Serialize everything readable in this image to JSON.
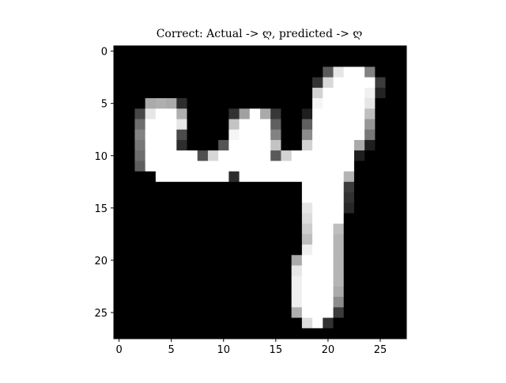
{
  "chart_data": {
    "type": "heatmap",
    "title": "Correct: Actual -> ღ, predicted -> ღ",
    "xlabel": "",
    "ylabel": "",
    "colormap": "gray",
    "shape": [
      28,
      28
    ],
    "xlim": [
      -0.5,
      27.5
    ],
    "ylim": [
      27.5,
      -0.5
    ],
    "x_ticks": [
      0,
      5,
      10,
      15,
      20,
      25
    ],
    "y_ticks": [
      0,
      5,
      10,
      15,
      20,
      25
    ],
    "x_tick_labels": [
      "0",
      "5",
      "10",
      "15",
      "20",
      "25"
    ],
    "y_tick_labels": [
      "0",
      "5",
      "10",
      "15",
      "20",
      "25"
    ],
    "grid": false,
    "values": [
      [
        0,
        0,
        0,
        0,
        0,
        0,
        0,
        0,
        0,
        0,
        0,
        0,
        0,
        0,
        0,
        0,
        0,
        0,
        0,
        0,
        0,
        0,
        0,
        0,
        0,
        0,
        0,
        0
      ],
      [
        0,
        0,
        0,
        0,
        0,
        0,
        0,
        0,
        0,
        0,
        0,
        0,
        0,
        0,
        0,
        0,
        0,
        0,
        0,
        0,
        0,
        0,
        0,
        0,
        0,
        0,
        0,
        0
      ],
      [
        0,
        0,
        0,
        0,
        0,
        0,
        0,
        0,
        0,
        0,
        0,
        0,
        0,
        0,
        0,
        0,
        0,
        0,
        0,
        0,
        90,
        230,
        255,
        255,
        130,
        0,
        0,
        0
      ],
      [
        0,
        0,
        0,
        0,
        0,
        0,
        0,
        0,
        0,
        0,
        0,
        0,
        0,
        0,
        0,
        0,
        0,
        0,
        0,
        50,
        215,
        255,
        255,
        255,
        255,
        60,
        0,
        0
      ],
      [
        0,
        0,
        0,
        0,
        0,
        0,
        0,
        0,
        0,
        0,
        0,
        0,
        0,
        0,
        0,
        0,
        0,
        0,
        0,
        210,
        255,
        255,
        255,
        255,
        240,
        35,
        0,
        0
      ],
      [
        0,
        0,
        0,
        170,
        175,
        170,
        45,
        0,
        0,
        0,
        0,
        0,
        0,
        0,
        0,
        0,
        0,
        0,
        0,
        245,
        255,
        255,
        255,
        255,
        230,
        0,
        0,
        0
      ],
      [
        0,
        0,
        70,
        230,
        255,
        255,
        175,
        0,
        0,
        0,
        0,
        50,
        160,
        255,
        170,
        55,
        0,
        0,
        30,
        255,
        255,
        255,
        255,
        255,
        190,
        0,
        0,
        0
      ],
      [
        0,
        0,
        110,
        255,
        255,
        255,
        230,
        0,
        0,
        0,
        0,
        195,
        255,
        255,
        255,
        95,
        0,
        0,
        95,
        255,
        255,
        255,
        255,
        255,
        150,
        0,
        0,
        0
      ],
      [
        0,
        0,
        130,
        255,
        255,
        255,
        75,
        0,
        0,
        0,
        0,
        245,
        255,
        255,
        255,
        130,
        0,
        0,
        140,
        255,
        255,
        255,
        255,
        255,
        120,
        0,
        0,
        0
      ],
      [
        0,
        0,
        120,
        255,
        255,
        255,
        45,
        0,
        0,
        0,
        85,
        255,
        255,
        255,
        255,
        195,
        0,
        0,
        210,
        255,
        255,
        255,
        255,
        170,
        30,
        0,
        0,
        0
      ],
      [
        0,
        0,
        110,
        255,
        255,
        255,
        255,
        255,
        80,
        215,
        255,
        255,
        255,
        255,
        255,
        90,
        210,
        255,
        255,
        255,
        255,
        255,
        255,
        30,
        0,
        0,
        0,
        0
      ],
      [
        0,
        0,
        95,
        255,
        255,
        255,
        255,
        255,
        255,
        255,
        255,
        255,
        255,
        255,
        255,
        255,
        255,
        255,
        255,
        255,
        255,
        255,
        255,
        0,
        0,
        0,
        0,
        0
      ],
      [
        0,
        0,
        0,
        0,
        255,
        255,
        255,
        255,
        255,
        255,
        255,
        45,
        255,
        255,
        255,
        255,
        255,
        255,
        255,
        255,
        255,
        255,
        180,
        0,
        0,
        0,
        0,
        0
      ],
      [
        0,
        0,
        0,
        0,
        0,
        0,
        0,
        0,
        0,
        0,
        0,
        0,
        0,
        0,
        0,
        0,
        0,
        0,
        255,
        255,
        255,
        255,
        60,
        0,
        0,
        0,
        0,
        0
      ],
      [
        0,
        0,
        0,
        0,
        0,
        0,
        0,
        0,
        0,
        0,
        0,
        0,
        0,
        0,
        0,
        0,
        0,
        0,
        255,
        255,
        255,
        255,
        50,
        0,
        0,
        0,
        0,
        0
      ],
      [
        0,
        0,
        0,
        0,
        0,
        0,
        0,
        0,
        0,
        0,
        0,
        0,
        0,
        0,
        0,
        0,
        0,
        0,
        230,
        255,
        255,
        255,
        40,
        0,
        0,
        0,
        0,
        0
      ],
      [
        0,
        0,
        0,
        0,
        0,
        0,
        0,
        0,
        0,
        0,
        0,
        0,
        0,
        0,
        0,
        0,
        0,
        0,
        220,
        255,
        255,
        255,
        0,
        0,
        0,
        0,
        0,
        0
      ],
      [
        0,
        0,
        0,
        0,
        0,
        0,
        0,
        0,
        0,
        0,
        0,
        0,
        0,
        0,
        0,
        0,
        0,
        0,
        205,
        255,
        255,
        190,
        0,
        0,
        0,
        0,
        0,
        0
      ],
      [
        0,
        0,
        0,
        0,
        0,
        0,
        0,
        0,
        0,
        0,
        0,
        0,
        0,
        0,
        0,
        0,
        0,
        0,
        190,
        255,
        255,
        180,
        0,
        0,
        0,
        0,
        0,
        0
      ],
      [
        0,
        0,
        0,
        0,
        0,
        0,
        0,
        0,
        0,
        0,
        0,
        0,
        0,
        0,
        0,
        0,
        0,
        0,
        240,
        255,
        255,
        180,
        0,
        0,
        0,
        0,
        0,
        0
      ],
      [
        0,
        0,
        0,
        0,
        0,
        0,
        0,
        0,
        0,
        0,
        0,
        0,
        0,
        0,
        0,
        0,
        0,
        170,
        255,
        255,
        255,
        180,
        0,
        0,
        0,
        0,
        0,
        0
      ],
      [
        0,
        0,
        0,
        0,
        0,
        0,
        0,
        0,
        0,
        0,
        0,
        0,
        0,
        0,
        0,
        0,
        0,
        230,
        255,
        255,
        255,
        180,
        0,
        0,
        0,
        0,
        0,
        0
      ],
      [
        0,
        0,
        0,
        0,
        0,
        0,
        0,
        0,
        0,
        0,
        0,
        0,
        0,
        0,
        0,
        0,
        0,
        240,
        255,
        255,
        255,
        180,
        0,
        0,
        0,
        0,
        0,
        0
      ],
      [
        0,
        0,
        0,
        0,
        0,
        0,
        0,
        0,
        0,
        0,
        0,
        0,
        0,
        0,
        0,
        0,
        0,
        240,
        255,
        255,
        255,
        170,
        0,
        0,
        0,
        0,
        0,
        0
      ],
      [
        0,
        0,
        0,
        0,
        0,
        0,
        0,
        0,
        0,
        0,
        0,
        0,
        0,
        0,
        0,
        0,
        0,
        240,
        255,
        255,
        255,
        140,
        0,
        0,
        0,
        0,
        0,
        0
      ],
      [
        0,
        0,
        0,
        0,
        0,
        0,
        0,
        0,
        0,
        0,
        0,
        0,
        0,
        0,
        0,
        0,
        0,
        175,
        255,
        255,
        255,
        60,
        0,
        0,
        0,
        0,
        0,
        0
      ],
      [
        0,
        0,
        0,
        0,
        0,
        0,
        0,
        0,
        0,
        0,
        0,
        0,
        0,
        0,
        0,
        0,
        0,
        0,
        220,
        255,
        50,
        0,
        0,
        0,
        0,
        0,
        0,
        0
      ],
      [
        0,
        0,
        0,
        0,
        0,
        0,
        0,
        0,
        0,
        0,
        0,
        0,
        0,
        0,
        0,
        0,
        0,
        0,
        0,
        0,
        0,
        0,
        0,
        0,
        0,
        0,
        0,
        0
      ]
    ]
  }
}
